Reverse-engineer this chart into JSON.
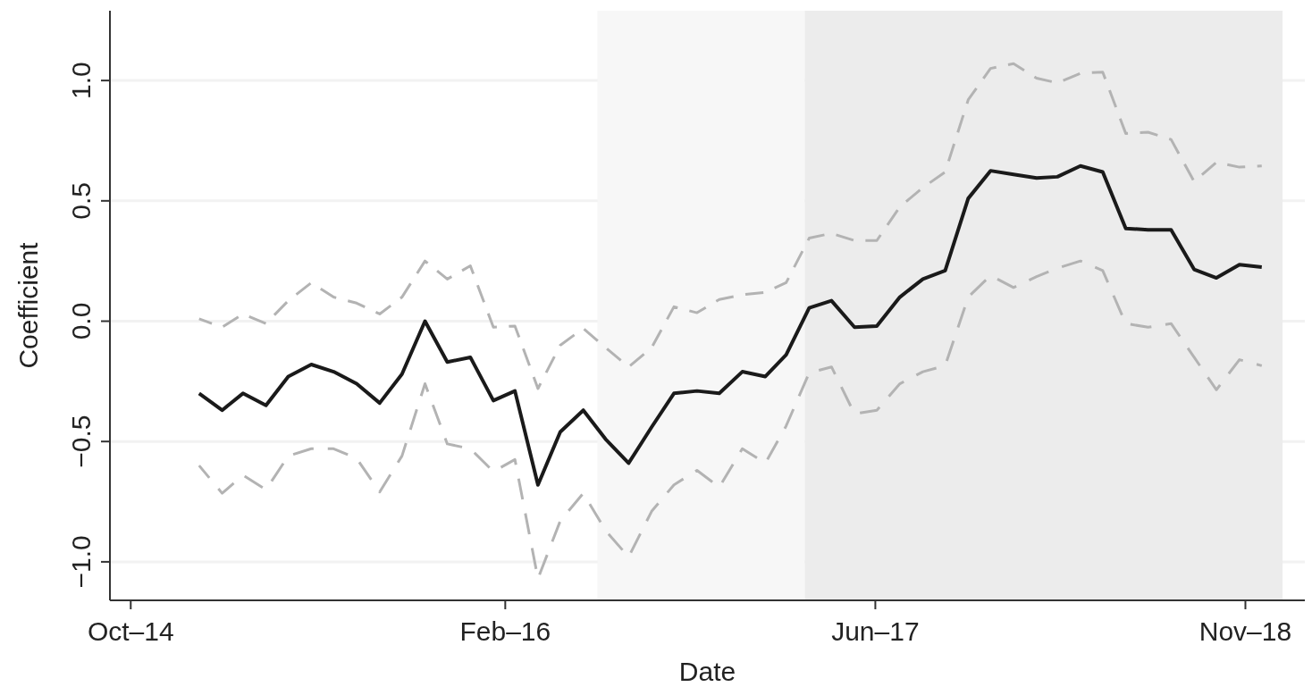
{
  "chart_data": {
    "type": "line",
    "xlabel": "Date",
    "ylabel": "Coefficient",
    "x": [
      "2015-01",
      "2015-02",
      "2015-03",
      "2015-04",
      "2015-05",
      "2015-06",
      "2015-07",
      "2015-08",
      "2015-09",
      "2015-10",
      "2015-11",
      "2015-12",
      "2016-01",
      "2016-02",
      "2016-03",
      "2016-04",
      "2016-05",
      "2016-06",
      "2016-07",
      "2016-08",
      "2016-09",
      "2016-10",
      "2016-11",
      "2016-12",
      "2017-01",
      "2017-02",
      "2017-03",
      "2017-04",
      "2017-05",
      "2017-06",
      "2017-07",
      "2017-08",
      "2017-09",
      "2017-10",
      "2017-11",
      "2017-12",
      "2018-01",
      "2018-02",
      "2018-03",
      "2018-04",
      "2018-05",
      "2018-06",
      "2018-07",
      "2018-08",
      "2018-09",
      "2018-10",
      "2018-11",
      "2018-12"
    ],
    "series": [
      {
        "color": "#b3b3b3",
        "line_style": "dashed",
        "values": [
          0.01,
          -0.025,
          0.03,
          -0.01,
          0.085,
          0.16,
          0.1,
          0.075,
          0.03,
          0.1,
          0.25,
          0.175,
          0.23,
          -0.025,
          -0.02,
          -0.28,
          -0.1,
          -0.03,
          -0.11,
          -0.19,
          -0.11,
          0.06,
          0.035,
          0.09,
          0.11,
          0.12,
          0.16,
          0.345,
          0.365,
          0.335,
          0.335,
          0.475,
          0.555,
          0.62,
          0.92,
          1.05,
          1.07,
          1.01,
          0.99,
          1.03,
          1.035,
          0.78,
          0.785,
          0.755,
          0.58,
          0.66,
          0.64,
          0.645
        ]
      },
      {
        "color": "#b3b3b3",
        "line_style": "dashed",
        "values": [
          -0.6,
          -0.715,
          -0.64,
          -0.7,
          -0.56,
          -0.53,
          -0.53,
          -0.57,
          -0.71,
          -0.56,
          -0.26,
          -0.51,
          -0.53,
          -0.625,
          -0.575,
          -1.07,
          -0.83,
          -0.715,
          -0.87,
          -0.98,
          -0.79,
          -0.68,
          -0.62,
          -0.69,
          -0.53,
          -0.59,
          -0.435,
          -0.215,
          -0.19,
          -0.385,
          -0.37,
          -0.26,
          -0.21,
          -0.185,
          0.1,
          0.19,
          0.14,
          0.185,
          0.22,
          0.25,
          0.21,
          -0.01,
          -0.025,
          -0.01,
          -0.15,
          -0.285,
          -0.16,
          -0.185
        ]
      },
      {
        "color": "#1a1a1a",
        "line_style": "solid",
        "values": [
          -0.3,
          -0.37,
          -0.3,
          -0.35,
          -0.23,
          -0.18,
          -0.21,
          -0.26,
          -0.34,
          -0.22,
          0.0,
          -0.17,
          -0.15,
          -0.33,
          -0.29,
          -0.68,
          -0.46,
          -0.37,
          -0.49,
          -0.59,
          -0.44,
          -0.3,
          -0.29,
          -0.3,
          -0.21,
          -0.23,
          -0.14,
          0.055,
          0.085,
          -0.025,
          -0.02,
          0.1,
          0.175,
          0.21,
          0.51,
          0.625,
          0.61,
          0.595,
          0.6,
          0.645,
          0.62,
          0.385,
          0.38,
          0.38,
          0.215,
          0.18,
          0.235,
          0.225
        ]
      }
    ],
    "xlim": [
      "2014-09-03",
      "2019-01-28"
    ],
    "xticks": [
      {
        "value": "2014-10-01",
        "label": "Oct–14"
      },
      {
        "value": "2016-02-17",
        "label": "Feb–16"
      },
      {
        "value": "2017-06-29",
        "label": "Jun–17"
      },
      {
        "value": "2018-11-09",
        "label": "Nov–18"
      }
    ],
    "ylim": [
      -1.16,
      1.29
    ],
    "yticks": [
      {
        "value": -1,
        "label": "−1.0"
      },
      {
        "value": -0.5,
        "label": "−0.5"
      },
      {
        "value": 0,
        "label": "0.0"
      },
      {
        "value": 0.5,
        "label": "0.5"
      },
      {
        "value": 1,
        "label": "1.0"
      }
    ],
    "bands": [
      {
        "axis": "x",
        "from": "2016-06-20",
        "to": "2017-03-26",
        "color": "#f7f7f7"
      },
      {
        "axis": "x",
        "from": "2017-03-26",
        "to": "2018-12-29",
        "color": "#ececec"
      }
    ],
    "grid": "y",
    "marker": "none"
  }
}
